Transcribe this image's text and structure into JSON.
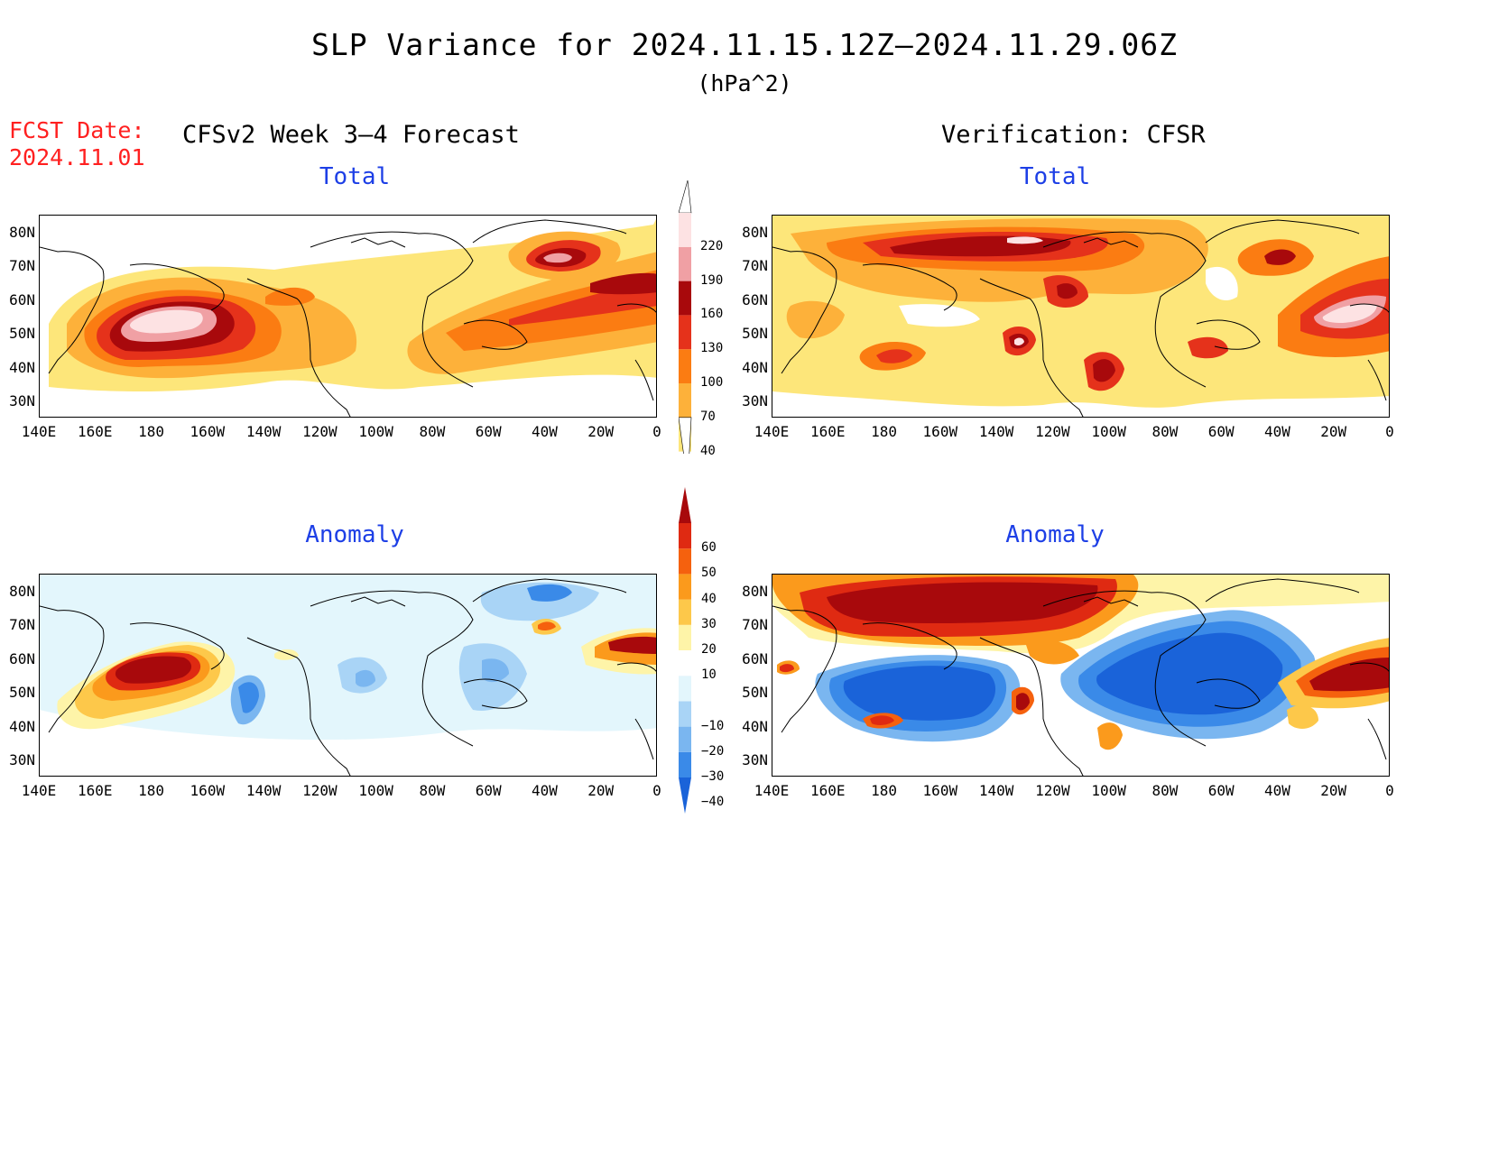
{
  "title": "SLP Variance for 2024.11.15.12Z–2024.11.29.06Z",
  "units": "(hPa^2)",
  "fcst_date_label": "FCST Date:",
  "fcst_date_value": "2024.11.01",
  "left_heading": "CFSv2 Week 3–4 Forecast",
  "right_heading": "Verification: CFSR",
  "panels": {
    "fcst_total": {
      "label": "Total"
    },
    "verif_total": {
      "label": "Total"
    },
    "fcst_anomaly": {
      "label": "Anomaly"
    },
    "verif_anomaly": {
      "label": "Anomaly"
    }
  },
  "lat_labels": [
    "80N",
    "70N",
    "60N",
    "50N",
    "40N",
    "30N"
  ],
  "lon_labels": [
    "140E",
    "160E",
    "180",
    "160W",
    "140W",
    "120W",
    "100W",
    "80W",
    "60W",
    "40W",
    "20W",
    "0"
  ],
  "total_scale": {
    "levels": [
      "40",
      "70",
      "100",
      "130",
      "160",
      "190",
      "220"
    ],
    "colors": [
      "#fde67a",
      "#fdb13a",
      "#fb7c12",
      "#e5321b",
      "#a8090c",
      "#f0a0a4",
      "#fde2e3"
    ]
  },
  "anomaly_scale": {
    "levels": [
      "−40",
      "−30",
      "−20",
      "−10",
      "10",
      "20",
      "30",
      "40",
      "50",
      "60"
    ],
    "colors": [
      "#1a63d9",
      "#3a8ae8",
      "#7ab6f0",
      "#a9d4f6",
      "#e3f6fc",
      "#ffffff",
      "#fef4a8",
      "#fdc84a",
      "#fb9a1c",
      "#f5610e",
      "#df2a12",
      "#a8090c"
    ]
  },
  "colors": {
    "title_red": "#ff2020",
    "subtitle_blue": "#1d3fe6"
  }
}
